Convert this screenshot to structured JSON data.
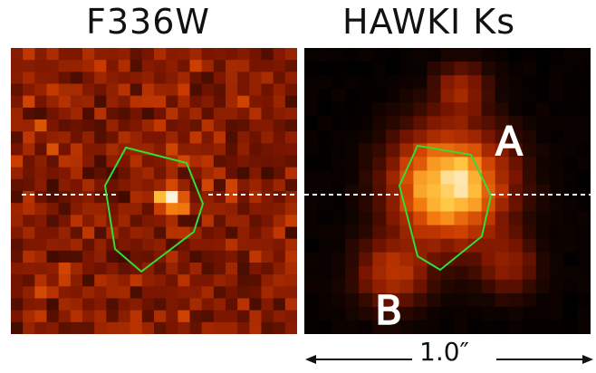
{
  "panels": [
    {
      "title": "F336W",
      "labels": []
    },
    {
      "title": "HAWKI Ks",
      "labels": [
        "A",
        "B"
      ]
    }
  ],
  "scale_bar": {
    "label": "1.0″"
  },
  "colors": {
    "aperture": "#33dd33",
    "slit_line": "#ffffff",
    "colormap": [
      "#000000",
      "#7a1500",
      "#c83a00",
      "#f47a10",
      "#ffc640",
      "#fff2dc"
    ]
  }
}
